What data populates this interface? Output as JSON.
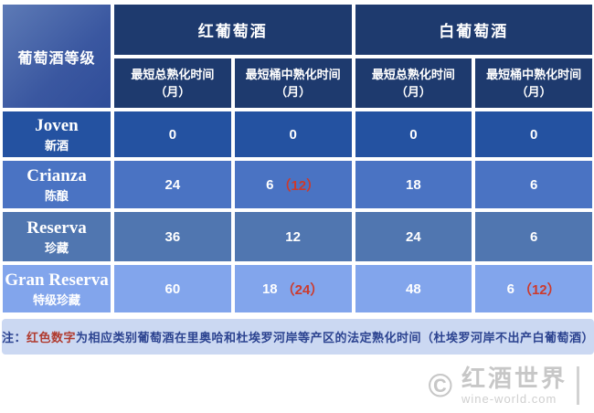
{
  "palette": {
    "header_navy": "#1e3a6e",
    "row_joven": "#2452a1",
    "row_crianza": "#4a73c3",
    "row_reserva": "#5076b0",
    "row_gran_reserva": "#82a5ec",
    "red_value": "#cd3a2c",
    "note_background": "#cbd8f2",
    "note_text": "#2c4390",
    "watermark_gray": "#c7c7c7"
  },
  "table": {
    "corner_label": "葡萄酒等级",
    "groups": [
      {
        "label": "红葡萄酒"
      },
      {
        "label": "白葡萄酒"
      }
    ],
    "subheaders": [
      "最短总熟化时间\n（月）",
      "最短桶中熟化时间\n（月）",
      "最短总熟化时间\n（月）",
      "最短桶中熟化时间\n（月）"
    ],
    "rows": [
      {
        "name": "Joven",
        "cn": "新酒",
        "values": [
          {
            "main": "0",
            "red": ""
          },
          {
            "main": "0",
            "red": ""
          },
          {
            "main": "0",
            "red": ""
          },
          {
            "main": "0",
            "red": ""
          }
        ]
      },
      {
        "name": "Crianza",
        "cn": "陈酿",
        "values": [
          {
            "main": "24",
            "red": ""
          },
          {
            "main": "6",
            "red": "（12）"
          },
          {
            "main": "18",
            "red": ""
          },
          {
            "main": "6",
            "red": ""
          }
        ]
      },
      {
        "name": "Reserva",
        "cn": "珍藏",
        "values": [
          {
            "main": "36",
            "red": ""
          },
          {
            "main": "12",
            "red": ""
          },
          {
            "main": "24",
            "red": ""
          },
          {
            "main": "6",
            "red": ""
          }
        ]
      },
      {
        "name": "Gran Reserva",
        "cn": "特级珍藏",
        "values": [
          {
            "main": "60",
            "red": ""
          },
          {
            "main": "18",
            "red": "（24）"
          },
          {
            "main": "48",
            "red": ""
          },
          {
            "main": "6",
            "red": "（12）"
          }
        ]
      }
    ]
  },
  "note": {
    "prefix": "注：",
    "red": "红色数字",
    "rest": "为相应类别葡萄酒在里奥哈和杜埃罗河岸等产区的法定熟化时间（杜埃罗河岸不出产白葡萄酒）"
  },
  "watermark": {
    "copyright": "©",
    "brand": "红酒世界",
    "site": "wine-world.com"
  },
  "chart_data": {
    "type": "table",
    "title": "葡萄酒等级 (Spanish wine aging classification)",
    "columns": [
      "葡萄酒等级",
      "红葡萄酒 最短总熟化时间（月）",
      "红葡萄酒 最短桶中熟化时间（月）",
      "白葡萄酒 最短总熟化时间（月）",
      "白葡萄酒 最短桶中熟化时间（月）"
    ],
    "rows": [
      [
        "Joven 新酒",
        "0",
        "0",
        "0",
        "0"
      ],
      [
        "Crianza 陈酿",
        "24",
        "6（12）",
        "18",
        "6"
      ],
      [
        "Reserva 珍藏",
        "36",
        "12",
        "24",
        "6"
      ],
      [
        "Gran Reserva 特级珍藏",
        "60",
        "18（24）",
        "48",
        "6（12）"
      ]
    ],
    "note": "红色数字为相应类别葡萄酒在里奥哈和杜埃罗河岸等产区的法定熟化时间（杜埃罗河岸不出产白葡萄酒）"
  }
}
